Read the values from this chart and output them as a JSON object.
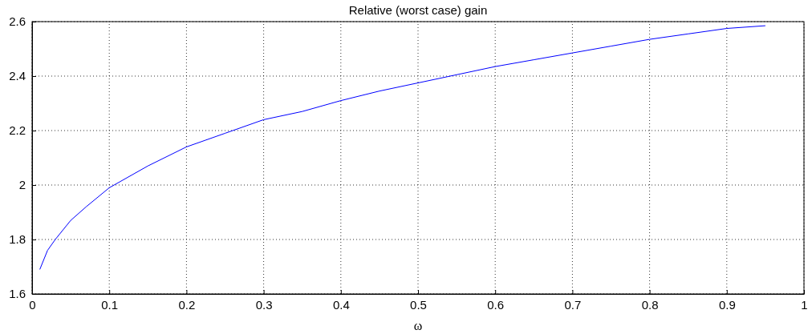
{
  "chart_data": {
    "type": "line",
    "title": "Relative (worst case) gain",
    "xlabel": "ω",
    "x": [
      0.01,
      0.02,
      0.03,
      0.05,
      0.07,
      0.1,
      0.15,
      0.2,
      0.25,
      0.3,
      0.35,
      0.4,
      0.45,
      0.5,
      0.55,
      0.6,
      0.65,
      0.7,
      0.75,
      0.8,
      0.85,
      0.9,
      0.95
    ],
    "series": [
      {
        "color": "#0000ff",
        "values": [
          1.69,
          1.76,
          1.8,
          1.87,
          1.92,
          1.99,
          2.07,
          2.14,
          2.19,
          2.24,
          2.27,
          2.31,
          2.345,
          2.375,
          2.405,
          2.435,
          2.46,
          2.485,
          2.51,
          2.535,
          2.555,
          2.575,
          2.585
        ]
      }
    ],
    "xlim": [
      0,
      1
    ],
    "xticks": [
      0,
      0.1,
      0.2,
      0.3,
      0.4,
      0.5,
      0.6,
      0.7,
      0.8,
      0.9,
      1
    ],
    "ylim": [
      1.6,
      2.6
    ],
    "yticks": [
      1.6,
      1.8,
      2,
      2.2,
      2.4,
      2.6
    ],
    "grid": true,
    "marker": "none",
    "line_style": "solid"
  }
}
